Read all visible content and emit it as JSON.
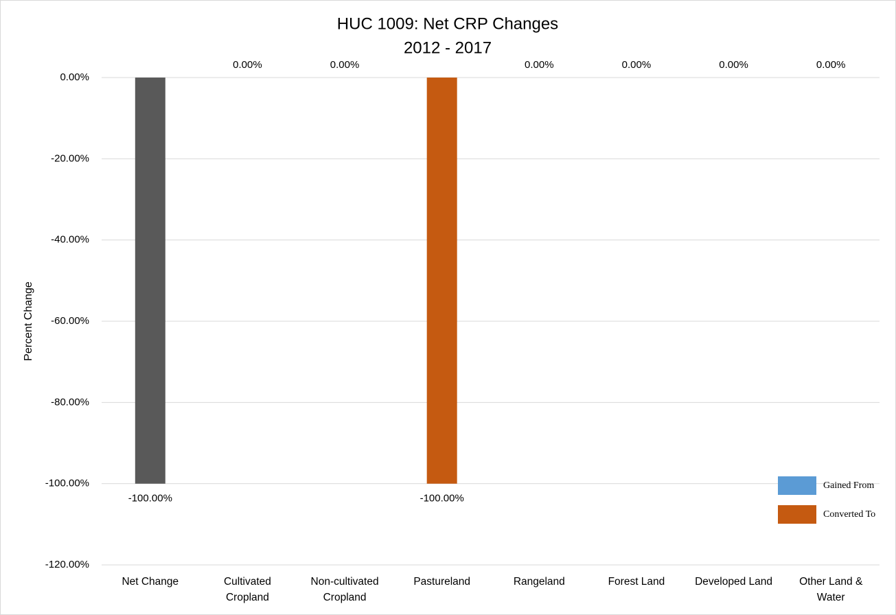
{
  "chart_data": {
    "type": "bar",
    "title": "HUC 1009: Net CRP Changes",
    "subtitle": "2012 - 2017",
    "y_label": "Percent Change",
    "categories": [
      "Net Change",
      "Cultivated Cropland",
      "Non-cultivated Cropland",
      "Pastureland",
      "Rangeland",
      "Forest Land",
      "Developed Land",
      "Other Land & Water"
    ],
    "values": [
      -100,
      0,
      0,
      -100,
      0,
      0,
      0,
      0
    ],
    "value_labels": [
      "-100.00%",
      "0.00%",
      "0.00%",
      "-100.00%",
      "0.00%",
      "0.00%",
      "0.00%",
      "0.00%"
    ],
    "colors": [
      "#595959",
      "#5b9bd5",
      "#5b9bd5",
      "#c55a11",
      "#5b9bd5",
      "#5b9bd5",
      "#5b9bd5",
      "#5b9bd5"
    ],
    "legend": [
      {
        "name": "Gained From",
        "color": "#5b9bd5"
      },
      {
        "name": "Converted To",
        "color": "#c55a11"
      }
    ],
    "legend_position": "lower right",
    "ylim": [
      -120,
      0
    ],
    "yticks": [
      {
        "value": 0,
        "label": "0.00%"
      },
      {
        "value": -20,
        "label": "-20.00%"
      },
      {
        "value": -40,
        "label": "-40.00%"
      },
      {
        "value": -60,
        "label": "-60.00%"
      },
      {
        "value": -80,
        "label": "-80.00%"
      },
      {
        "value": -100,
        "label": "-100.00%"
      },
      {
        "value": -120,
        "label": "-120.00%"
      }
    ],
    "grid": true
  }
}
